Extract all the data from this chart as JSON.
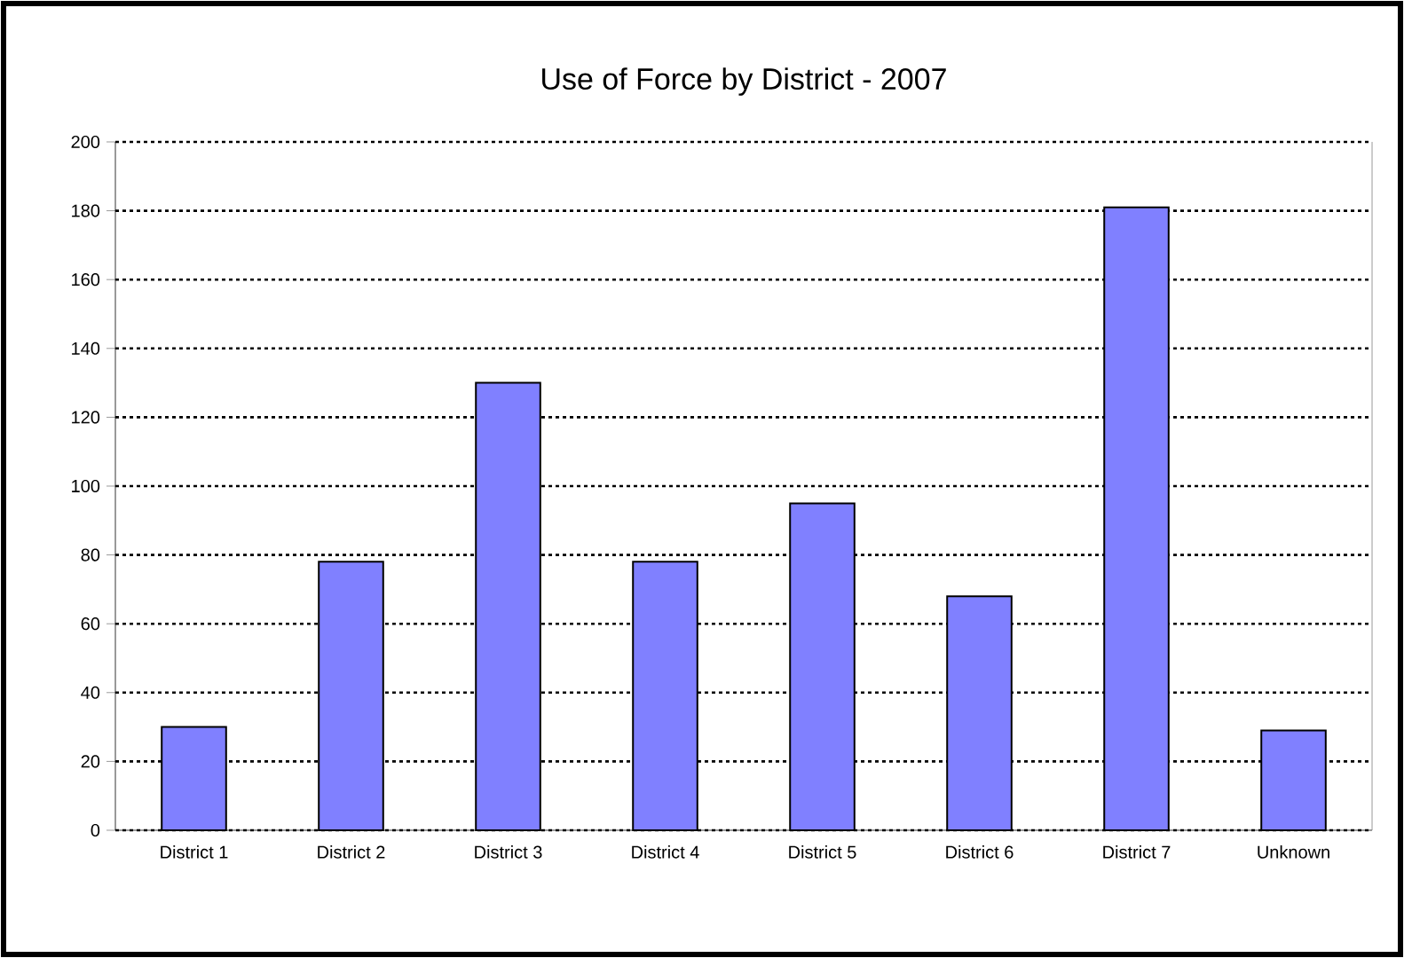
{
  "chart_data": {
    "type": "bar",
    "title": "Use of Force by District - 2007",
    "categories": [
      "District 1",
      "District 2",
      "District 3",
      "District 4",
      "District 5",
      "District 6",
      "District 7",
      "Unknown"
    ],
    "values": [
      30,
      78,
      130,
      78,
      95,
      68,
      181,
      29
    ],
    "color": "#8080ff",
    "ylim": [
      0,
      200
    ],
    "yticks": [
      0,
      20,
      40,
      60,
      80,
      100,
      120,
      140,
      160,
      180,
      200
    ],
    "grid": "y"
  }
}
